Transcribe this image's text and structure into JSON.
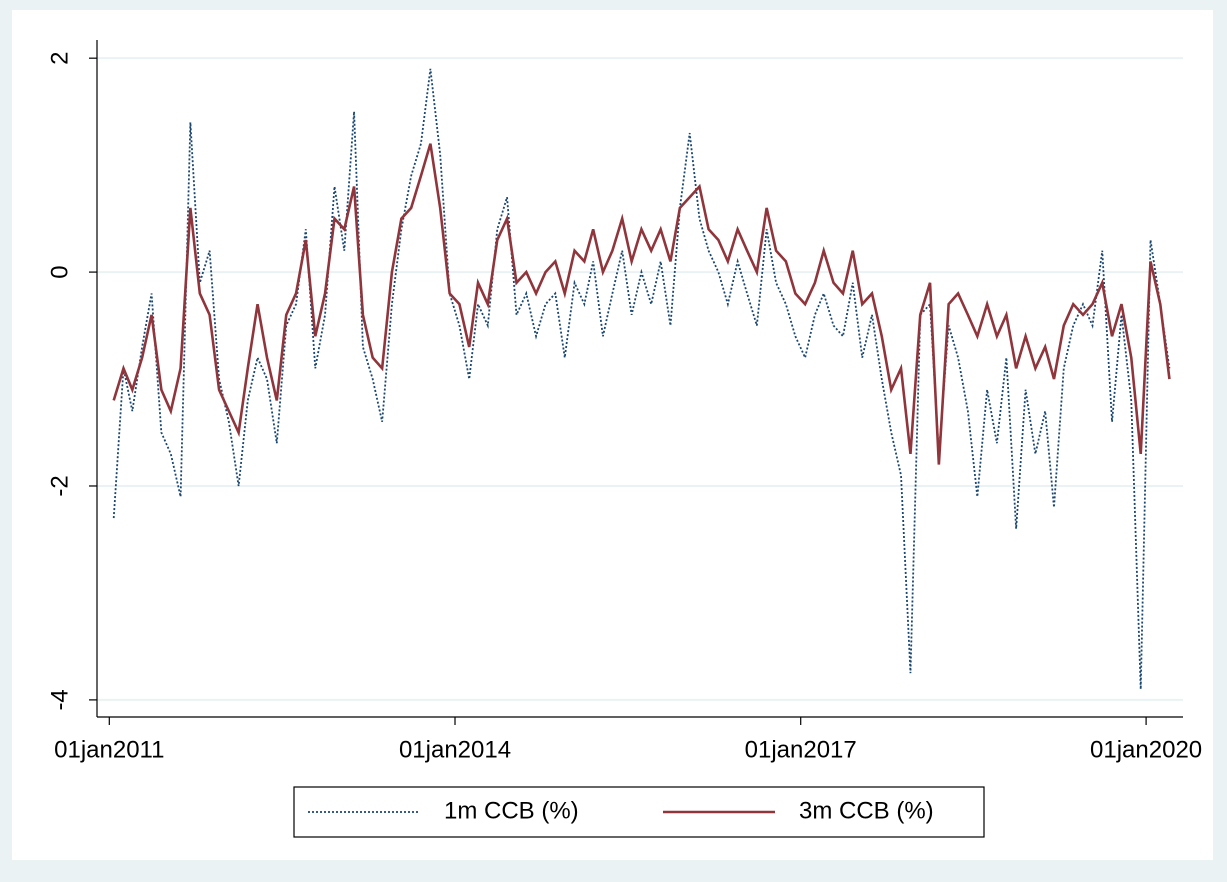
{
  "chart_data": {
    "type": "line",
    "x": [
      "2011-01-15",
      "2011-02-15",
      "2011-03-15",
      "2011-04-15",
      "2011-05-15",
      "2011-06-15",
      "2011-07-15",
      "2011-08-15",
      "2011-09-15",
      "2011-10-15",
      "2011-11-15",
      "2011-12-15",
      "2012-01-15",
      "2012-02-15",
      "2012-03-15",
      "2012-04-15",
      "2012-05-15",
      "2012-06-15",
      "2012-07-15",
      "2012-08-15",
      "2012-09-15",
      "2012-10-15",
      "2012-11-15",
      "2012-12-15",
      "2013-01-15",
      "2013-02-15",
      "2013-03-15",
      "2013-04-15",
      "2013-05-15",
      "2013-06-15",
      "2013-07-15",
      "2013-08-15",
      "2013-09-15",
      "2013-10-15",
      "2013-11-15",
      "2013-12-15",
      "2014-01-15",
      "2014-02-15",
      "2014-03-15",
      "2014-04-15",
      "2014-05-15",
      "2014-06-15",
      "2014-07-15",
      "2014-08-15",
      "2014-09-15",
      "2014-10-15",
      "2014-11-15",
      "2014-12-15",
      "2015-01-15",
      "2015-02-15",
      "2015-03-15",
      "2015-04-15",
      "2015-05-15",
      "2015-06-15",
      "2015-07-15",
      "2015-08-15",
      "2015-09-15",
      "2015-10-15",
      "2015-11-15",
      "2015-12-15",
      "2016-01-15",
      "2016-02-15",
      "2016-03-15",
      "2016-04-15",
      "2016-05-15",
      "2016-06-15",
      "2016-07-15",
      "2016-08-15",
      "2016-09-15",
      "2016-10-15",
      "2016-11-15",
      "2016-12-15",
      "2017-01-15",
      "2017-02-15",
      "2017-03-15",
      "2017-04-15",
      "2017-05-15",
      "2017-06-15",
      "2017-07-15",
      "2017-08-15",
      "2017-09-15",
      "2017-10-15",
      "2017-11-15",
      "2017-12-15",
      "2018-01-15",
      "2018-02-15",
      "2018-03-15",
      "2018-04-15",
      "2018-05-15",
      "2018-06-15",
      "2018-07-15",
      "2018-08-15",
      "2018-09-15",
      "2018-10-15",
      "2018-11-15",
      "2018-12-15",
      "2019-01-15",
      "2019-02-15",
      "2019-03-15",
      "2019-04-15",
      "2019-05-15",
      "2019-06-15",
      "2019-07-15",
      "2019-08-15",
      "2019-09-15",
      "2019-10-15",
      "2019-11-15",
      "2019-12-15",
      "2020-01-15",
      "2020-02-15",
      "2020-03-15"
    ],
    "series": [
      {
        "name": "1m CCB (%)",
        "color": "#1a476f",
        "dash": "dotted",
        "values": [
          -2.3,
          -0.9,
          -1.3,
          -0.7,
          -0.2,
          -1.5,
          -1.7,
          -2.1,
          1.4,
          -0.1,
          0.2,
          -1.0,
          -1.4,
          -2.0,
          -1.2,
          -0.8,
          -1.0,
          -1.6,
          -0.5,
          -0.3,
          0.4,
          -0.9,
          -0.4,
          0.8,
          0.2,
          1.5,
          -0.7,
          -1.0,
          -1.4,
          -0.3,
          0.4,
          0.9,
          1.2,
          1.9,
          1.1,
          -0.2,
          -0.5,
          -1.0,
          -0.3,
          -0.5,
          0.4,
          0.7,
          -0.4,
          -0.2,
          -0.6,
          -0.3,
          -0.2,
          -0.8,
          -0.1,
          -0.3,
          0.1,
          -0.6,
          -0.2,
          0.2,
          -0.4,
          0.0,
          -0.3,
          0.1,
          -0.5,
          0.6,
          1.3,
          0.5,
          0.2,
          0.0,
          -0.3,
          0.1,
          -0.2,
          -0.5,
          0.4,
          -0.1,
          -0.3,
          -0.6,
          -0.8,
          -0.4,
          -0.2,
          -0.5,
          -0.6,
          -0.1,
          -0.8,
          -0.4,
          -1.0,
          -1.5,
          -1.9,
          -3.75,
          -0.4,
          -0.3,
          -1.7,
          -0.5,
          -0.8,
          -1.3,
          -2.1,
          -1.1,
          -1.6,
          -0.8,
          -2.4,
          -1.1,
          -1.7,
          -1.3,
          -2.2,
          -0.9,
          -0.5,
          -0.3,
          -0.5,
          0.2,
          -1.4,
          -0.4,
          -1.2,
          -3.9,
          0.3,
          -0.3,
          -0.9
        ]
      },
      {
        "name": "3m CCB (%)",
        "color": "#90353b",
        "dash": "solid",
        "values": [
          -1.2,
          -0.9,
          -1.1,
          -0.8,
          -0.4,
          -1.1,
          -1.3,
          -0.9,
          0.6,
          -0.2,
          -0.4,
          -1.1,
          -1.3,
          -1.5,
          -0.9,
          -0.3,
          -0.8,
          -1.2,
          -0.4,
          -0.2,
          0.3,
          -0.6,
          -0.2,
          0.5,
          0.4,
          0.8,
          -0.4,
          -0.8,
          -0.9,
          0.0,
          0.5,
          0.6,
          0.9,
          1.2,
          0.6,
          -0.2,
          -0.3,
          -0.7,
          -0.1,
          -0.3,
          0.3,
          0.5,
          -0.1,
          0.0,
          -0.2,
          0.0,
          0.1,
          -0.2,
          0.2,
          0.1,
          0.4,
          0.0,
          0.2,
          0.5,
          0.1,
          0.4,
          0.2,
          0.4,
          0.1,
          0.6,
          0.7,
          0.8,
          0.4,
          0.3,
          0.1,
          0.4,
          0.2,
          0.0,
          0.6,
          0.2,
          0.1,
          -0.2,
          -0.3,
          -0.1,
          0.2,
          -0.1,
          -0.2,
          0.2,
          -0.3,
          -0.2,
          -0.6,
          -1.1,
          -0.9,
          -1.7,
          -0.4,
          -0.1,
          -1.8,
          -0.3,
          -0.2,
          -0.4,
          -0.6,
          -0.3,
          -0.6,
          -0.4,
          -0.9,
          -0.6,
          -0.9,
          -0.7,
          -1.0,
          -0.5,
          -0.3,
          -0.4,
          -0.3,
          -0.1,
          -0.6,
          -0.3,
          -0.8,
          -1.7,
          0.1,
          -0.3,
          -1.0
        ]
      }
    ],
    "xlim": [
      "2010-11-23",
      "2020-04-27"
    ],
    "xticks": [
      {
        "value": "2011-01-01",
        "label": "01jan2011"
      },
      {
        "value": "2014-01-01",
        "label": "01jan2014"
      },
      {
        "value": "2017-01-01",
        "label": "01jan2017"
      },
      {
        "value": "2020-01-01",
        "label": "01jan2020"
      }
    ],
    "ylim": [
      -4.16,
      2.17
    ],
    "yticks": [
      -4,
      -2,
      0,
      2
    ],
    "grid": true
  }
}
